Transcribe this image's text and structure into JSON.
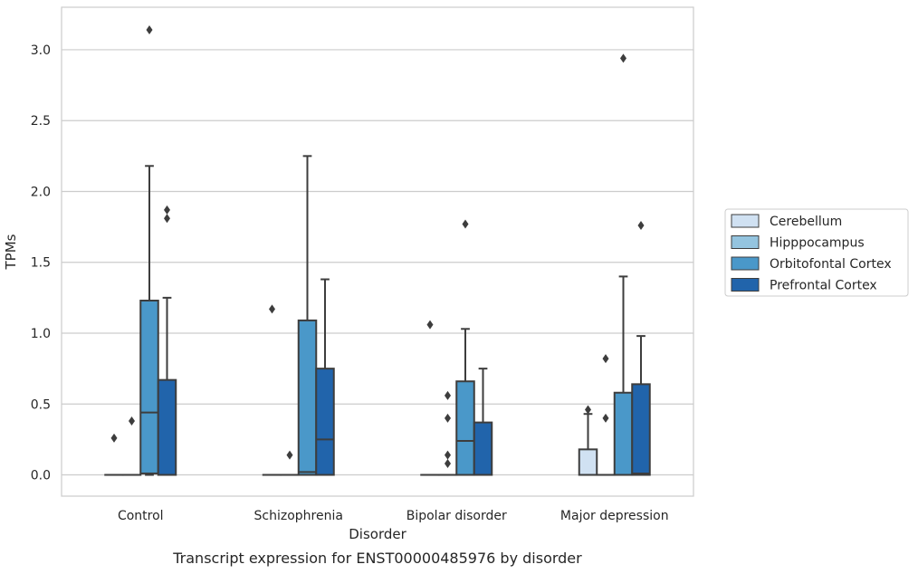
{
  "chart_data": {
    "type": "boxplot",
    "title": "Transcript expression for ENST00000485976 by disorder",
    "xlabel": "Disorder",
    "ylabel": "TPMs",
    "ylim": [
      -0.15,
      3.3
    ],
    "yticks": [
      0.0,
      0.5,
      1.0,
      1.5,
      2.0,
      2.5,
      3.0
    ],
    "ytick_labels": [
      "0.0",
      "0.5",
      "1.0",
      "1.5",
      "2.0",
      "2.5",
      "3.0"
    ],
    "categories": [
      "Control",
      "Schizophrenia",
      "Bipolar disorder",
      "Major depression"
    ],
    "grid": "horizontal",
    "legend_position": "right",
    "series": [
      {
        "name": "Cerebellum",
        "color": "#d0e1f2",
        "boxes": [
          {
            "q1": 0,
            "median": 0,
            "q3": 0,
            "whislo": 0,
            "whishi": 0,
            "fliers": [
              0.26
            ]
          },
          {
            "q1": 0,
            "median": 0,
            "q3": 0,
            "whislo": 0,
            "whishi": 0,
            "fliers": [
              1.17
            ]
          },
          {
            "q1": 0,
            "median": 0,
            "q3": 0,
            "whislo": 0,
            "whishi": 0,
            "fliers": [
              1.06
            ]
          },
          {
            "q1": 0,
            "median": 0,
            "q3": 0.18,
            "whislo": 0,
            "whishi": 0.43,
            "fliers": [
              0.46
            ]
          }
        ]
      },
      {
        "name": "Hipppocampus",
        "color": "#94c4df",
        "boxes": [
          {
            "q1": 0,
            "median": 0,
            "q3": 0,
            "whislo": 0,
            "whishi": 0,
            "fliers": [
              0.38
            ]
          },
          {
            "q1": 0,
            "median": 0,
            "q3": 0,
            "whislo": 0,
            "whishi": 0,
            "fliers": [
              0.14
            ]
          },
          {
            "q1": 0,
            "median": 0,
            "q3": 0,
            "whislo": 0,
            "whishi": 0,
            "fliers": [
              0.08,
              0.14,
              0.4,
              0.56
            ]
          },
          {
            "q1": 0,
            "median": 0,
            "q3": 0,
            "whislo": 0,
            "whishi": 0,
            "fliers": [
              0.4,
              0.82
            ]
          }
        ]
      },
      {
        "name": "Orbitofontal Cortex",
        "color": "#4a98c9",
        "boxes": [
          {
            "q1": 0.01,
            "median": 0.44,
            "q3": 1.23,
            "whislo": 0,
            "whishi": 2.18,
            "fliers": [
              3.14
            ]
          },
          {
            "q1": 0,
            "median": 0.02,
            "q3": 1.09,
            "whislo": 0,
            "whishi": 2.25,
            "fliers": []
          },
          {
            "q1": 0,
            "median": 0.24,
            "q3": 0.66,
            "whislo": 0,
            "whishi": 1.03,
            "fliers": [
              1.77
            ]
          },
          {
            "q1": 0,
            "median": 0,
            "q3": 0.58,
            "whislo": 0,
            "whishi": 1.4,
            "fliers": [
              2.94
            ]
          }
        ]
      },
      {
        "name": "Prefrontal Cortex",
        "color": "#2164ab",
        "boxes": [
          {
            "q1": 0,
            "median": 0,
            "q3": 0.67,
            "whislo": 0,
            "whishi": 1.25,
            "fliers": [
              1.81,
              1.87
            ]
          },
          {
            "q1": 0,
            "median": 0.25,
            "q3": 0.75,
            "whislo": 0,
            "whishi": 1.38,
            "fliers": []
          },
          {
            "q1": 0,
            "median": 0,
            "q3": 0.37,
            "whislo": 0,
            "whishi": 0.75,
            "fliers": []
          },
          {
            "q1": 0,
            "median": 0.01,
            "q3": 0.64,
            "whislo": 0,
            "whishi": 0.98,
            "fliers": [
              1.76
            ]
          }
        ]
      }
    ]
  }
}
